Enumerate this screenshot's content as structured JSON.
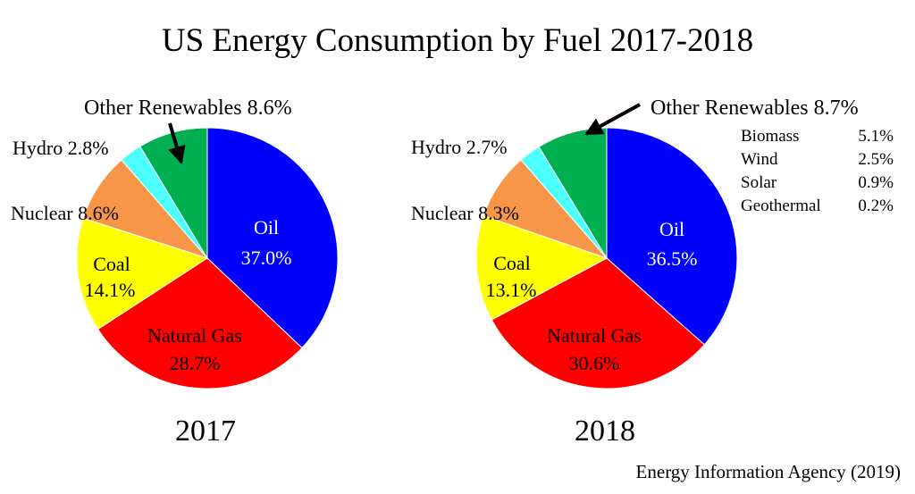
{
  "chart_data": {
    "type": "pie",
    "title": "US Energy Consumption by Fuel 2017-2018",
    "source": "Energy Information Agency (2019)",
    "colors": {
      "Oil": "#0000ff",
      "Natural Gas": "#ff0000",
      "Coal": "#ffff00",
      "Nuclear": "#f79646",
      "Hydro": "#4dffff",
      "Other Renewables": "#00b050"
    },
    "charts": [
      {
        "year": "2017",
        "slices": [
          {
            "name": "Oil",
            "value": 37.0,
            "label": "Oil",
            "pct": "37.0%"
          },
          {
            "name": "Natural Gas",
            "value": 28.7,
            "label": "Natural Gas",
            "pct": "28.7%"
          },
          {
            "name": "Coal",
            "value": 14.1,
            "label": "Coal",
            "pct": "14.1%"
          },
          {
            "name": "Nuclear",
            "value": 8.6,
            "label": "Nuclear 8.6%"
          },
          {
            "name": "Hydro",
            "value": 2.8,
            "label": "Hydro 2.8%"
          },
          {
            "name": "Other Renewables",
            "value": 8.6,
            "label": "Other Renewables 8.6%"
          }
        ]
      },
      {
        "year": "2018",
        "slices": [
          {
            "name": "Oil",
            "value": 36.5,
            "label": "Oil",
            "pct": "36.5%"
          },
          {
            "name": "Natural Gas",
            "value": 30.6,
            "label": "Natural Gas",
            "pct": "30.6%"
          },
          {
            "name": "Coal",
            "value": 13.1,
            "label": "Coal",
            "pct": "13.1%"
          },
          {
            "name": "Nuclear",
            "value": 8.3,
            "label": "Nuclear 8.3%"
          },
          {
            "name": "Hydro",
            "value": 2.7,
            "label": "Hydro 2.7%"
          },
          {
            "name": "Other Renewables",
            "value": 8.7,
            "label": "Other Renewables 8.7%"
          }
        ],
        "renewables_breakdown": [
          {
            "name": "Biomass",
            "value": "5.1%"
          },
          {
            "name": "Wind",
            "value": "2.5%"
          },
          {
            "name": "Solar",
            "value": "0.9%"
          },
          {
            "name": "Geothermal",
            "value": "0.2%"
          }
        ]
      }
    ]
  }
}
